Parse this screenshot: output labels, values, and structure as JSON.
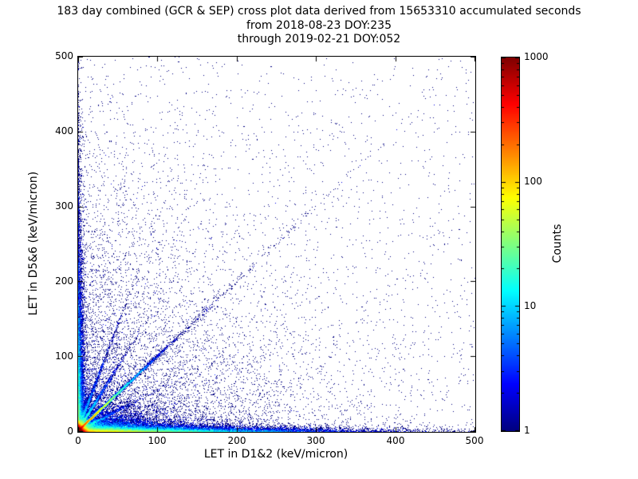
{
  "colors": {
    "background": "#ffffff",
    "axes": "#000000",
    "text": "#000000",
    "single_count_blue": "#000080",
    "max_count_red": "#800000"
  },
  "chart_data": {
    "type": "heatmap",
    "title": "183 day combined (GCR & SEP) cross plot data derived from 15653310 accumulated seconds",
    "subtitle1": "from 2018-08-23 DOY:235",
    "subtitle2": "through 2019-02-21 DOY:052",
    "xlabel": "LET in D1&2 (keV/micron)",
    "ylabel": "LET in D5&6 (keV/micron)",
    "xlim": [
      0,
      500
    ],
    "ylim": [
      0,
      500
    ],
    "grid": false,
    "x_ticks": [
      "0",
      "100",
      "200",
      "300",
      "400",
      "500"
    ],
    "y_ticks": [
      "0",
      "100",
      "200",
      "300",
      "400",
      "500"
    ],
    "colorbar": {
      "label": "Counts",
      "scale": "log",
      "vmin": 1,
      "vmax": 1000,
      "ticks": [
        "1000",
        "100",
        "10",
        "1"
      ],
      "colormap": "jet",
      "colormap_stops": [
        {
          "pos": 0.0,
          "color": "#000080"
        },
        {
          "pos": 0.125,
          "color": "#0000ff"
        },
        {
          "pos": 0.375,
          "color": "#00ffff"
        },
        {
          "pos": 0.625,
          "color": "#ffff00"
        },
        {
          "pos": 0.875,
          "color": "#ff0000"
        },
        {
          "pos": 1.0,
          "color": "#800000"
        }
      ]
    },
    "distribution": {
      "description": "2D log-count histogram of coincident LET events: saturated hot core at the origin, a bright cyan/green coincidence diagonal y=x out to ~130 keV/micron, dense low-count bands hugging both axes, faint rays fanning from the origin, and a sparse dark-blue haze of single-count events across the full 0-500 x 0-500 range.",
      "seed": 42,
      "bins": 500,
      "components": [
        {
          "type": "exp2d",
          "n": 120000,
          "x_scale": 2.2,
          "y_scale": 2.2,
          "note": "saturated core at origin"
        },
        {
          "type": "exp2d",
          "n": 30000,
          "x_scale": 85,
          "y_scale": 2.5,
          "note": "band along x-axis"
        },
        {
          "type": "exp2d",
          "n": 14000,
          "x_scale": 2.5,
          "y_scale": 85,
          "note": "band along y-axis"
        },
        {
          "type": "exp2d",
          "n": 9000,
          "x_scale": 40,
          "y_scale": 12,
          "note": "low-LET wedge"
        },
        {
          "type": "exp2d",
          "n": 7000,
          "x_scale": 115,
          "y_scale": 115,
          "note": "diffuse haze"
        },
        {
          "type": "diagonal",
          "n": 22000,
          "scale": 20,
          "jitter": 1.2,
          "max": 130,
          "slope": 1.0,
          "note": "coincidence diagonal"
        },
        {
          "type": "diagonal",
          "n": 900,
          "scale": 100,
          "jitter": 3.0,
          "max": 430,
          "slope": 1.0,
          "note": "sparse diagonal tail"
        },
        {
          "type": "diagonal",
          "n": 2600,
          "scale": 16,
          "jitter": 1.5,
          "max": 110,
          "slope": 1.7,
          "note": "faint ray above diagonal"
        },
        {
          "type": "diagonal",
          "n": 1800,
          "scale": 16,
          "jitter": 1.5,
          "max": 110,
          "slope": 2.8,
          "note": "faint steep ray"
        },
        {
          "type": "diagonal",
          "n": 1500,
          "scale": 20,
          "jitter": 1.5,
          "max": 130,
          "slope": 0.55,
          "note": "faint shallow ray"
        },
        {
          "type": "uniform",
          "n": 1400,
          "note": "isolated single-count events"
        }
      ]
    }
  }
}
